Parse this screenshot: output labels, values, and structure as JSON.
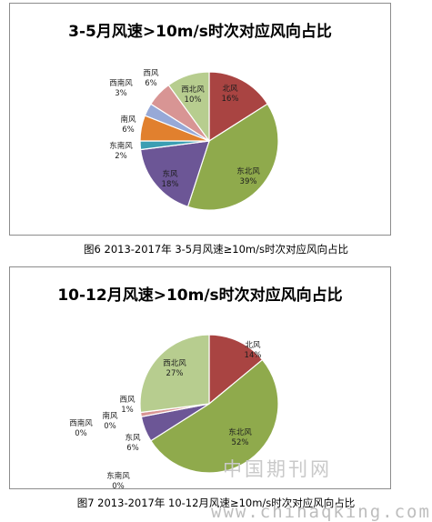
{
  "chart_data": [
    {
      "type": "pie",
      "title": "3-5月风速>10m/s时次对应风向占比",
      "categories": [
        "北风",
        "东北风",
        "东风",
        "东南风",
        "南风",
        "西南风",
        "西风",
        "西北风"
      ],
      "values": [
        16,
        39,
        18,
        2,
        6,
        3,
        6,
        10
      ],
      "labels": [
        "16%",
        "39%",
        "18%",
        "2%",
        "6%",
        "3%",
        "6%",
        "10%"
      ],
      "colors": [
        "#a94442",
        "#8faa4c",
        "#6c5696",
        "#3b9eb3",
        "#e1802e",
        "#97a9d7",
        "#d89594",
        "#b7cd8f"
      ]
    },
    {
      "type": "pie",
      "title": "10-12月风速>10m/s时次对应风向占比",
      "categories": [
        "北风",
        "东北风",
        "东风",
        "东南风",
        "南风",
        "西南风",
        "西风",
        "西北风"
      ],
      "values": [
        14,
        52,
        6,
        0,
        0,
        0,
        1,
        27
      ],
      "labels": [
        "14%",
        "52%",
        "6%",
        "0%",
        "0%",
        "0%",
        "1%",
        "27%"
      ],
      "colors": [
        "#a94442",
        "#8faa4c",
        "#6c5696",
        "#3b9eb3",
        "#e1802e",
        "#97a9d7",
        "#d89594",
        "#b7cd8f"
      ]
    }
  ],
  "captions": {
    "fig6": "图6 2013-2017年 3-5月风速≥10m/s时次对应风向占比",
    "fig7": "图7 2013-2017年 10-12月风速≥10m/s时次对应风向占比"
  },
  "watermark": {
    "text": "中国期刊网",
    "url": "www.chinaqking.com"
  }
}
